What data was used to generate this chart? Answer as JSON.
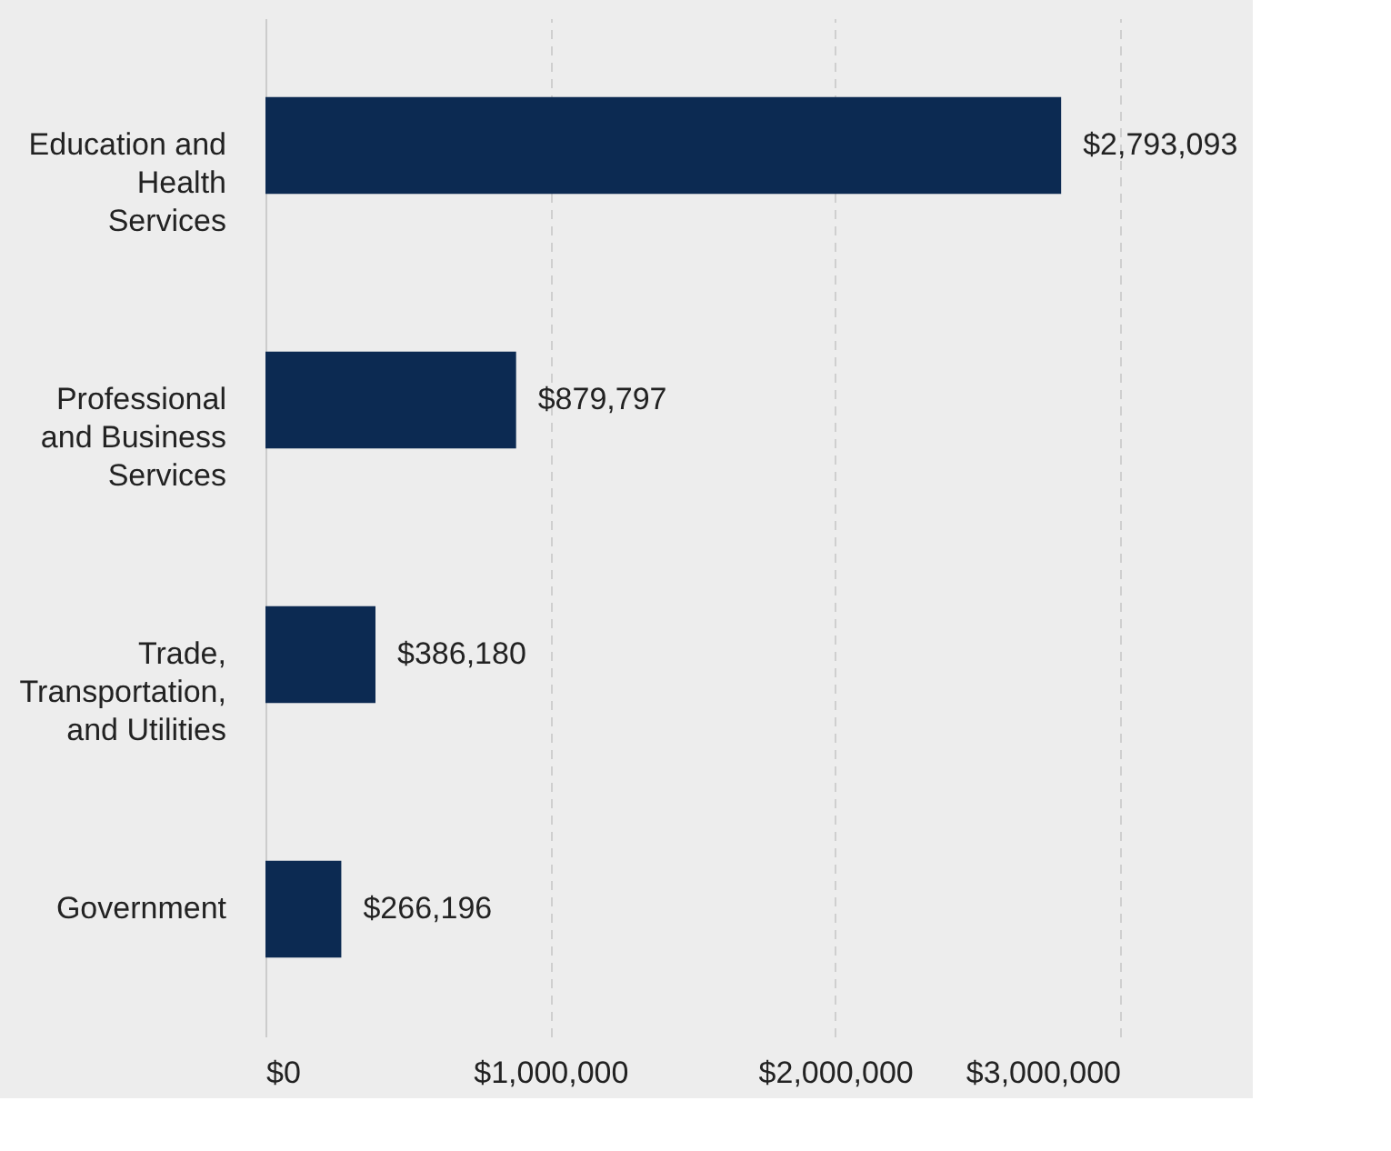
{
  "chart_data": {
    "type": "bar",
    "orientation": "horizontal",
    "categories": [
      "Education and Health Services",
      "Professional and Business Services",
      "Trade, Transportation, and Utilities",
      "Government"
    ],
    "values": [
      2793093,
      879797,
      386180,
      266196
    ],
    "color": "#0c2a52",
    "xlim": [
      0,
      3000000
    ],
    "xticks": [
      {
        "value": 0,
        "label": "$0"
      },
      {
        "value": 1000000,
        "label": "$1,000,000"
      },
      {
        "value": 2000000,
        "label": "$2,000,000"
      },
      {
        "value": 3000000,
        "label": "$3,000,000"
      }
    ],
    "value_labels": [
      "$2,793,093",
      "$879,797",
      "$386,180",
      "$266,196"
    ],
    "grid": "x"
  }
}
